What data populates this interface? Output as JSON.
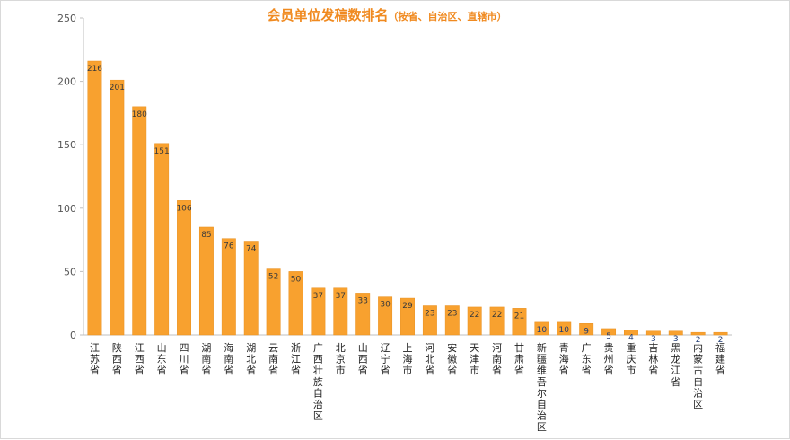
{
  "chart_data": {
    "type": "bar",
    "title": "会员单位发稿数排名",
    "subtitle": "（按省、自治区、直辖市）",
    "categories": [
      "江苏省",
      "陕西省",
      "江西省",
      "山东省",
      "四川省",
      "湖南省",
      "海南省",
      "湖北省",
      "云南省",
      "浙江省",
      "广西壮族自治区",
      "北京市",
      "山西省",
      "辽宁省",
      "上海市",
      "河北省",
      "安徽省",
      "天津市",
      "河南省",
      "甘肃省",
      "新疆维吾尔自治区",
      "青海省",
      "广东省",
      "贵州省",
      "重庆市",
      "吉林省",
      "黑龙江省",
      "内蒙古自治区",
      "福建省"
    ],
    "values": [
      216,
      201,
      180,
      151,
      106,
      85,
      76,
      74,
      52,
      50,
      37,
      37,
      33,
      30,
      29,
      23,
      23,
      22,
      22,
      21,
      10,
      10,
      9,
      5,
      4,
      3,
      3,
      2,
      2
    ],
    "yticks": [
      0,
      50,
      100,
      150,
      200,
      250
    ],
    "ylim": [
      0,
      250
    ],
    "xlabel": "",
    "ylabel": "",
    "grid": false,
    "colors": {
      "bar": "#F8A12F",
      "bar_edge": "#E89020",
      "title": "#F08A20",
      "axis": "#bfbfbf",
      "label_dark": "#3a3a3a",
      "label_blue": "#1F3B73"
    }
  }
}
